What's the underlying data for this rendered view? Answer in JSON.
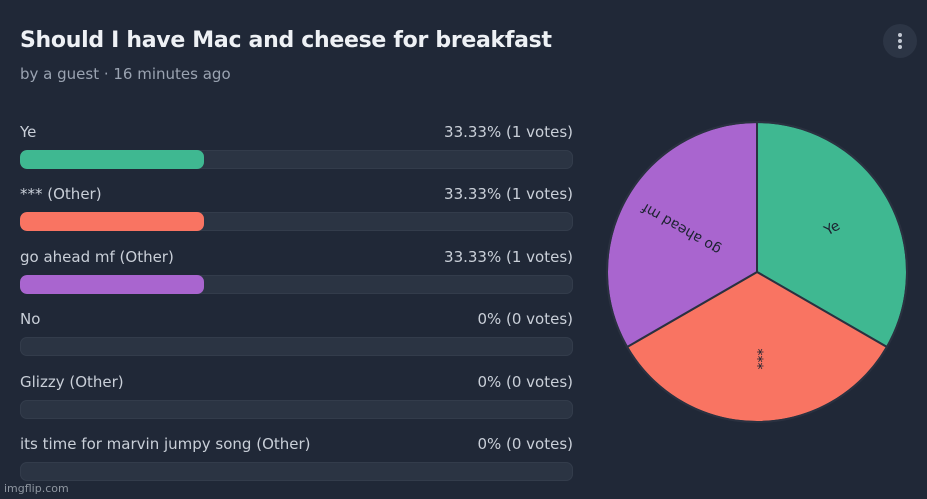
{
  "poll": {
    "title": "Should I have Mac and cheese for breakfast",
    "meta": "by a guest · 16 minutes ago"
  },
  "menu": {
    "icon": "more-vertical-icon"
  },
  "options": [
    {
      "label": "Ye",
      "result": "33.33% (1 votes)",
      "share": 0.3333,
      "color": "#3fb891"
    },
    {
      "label": "*** (Other)",
      "result": "33.33% (1 votes)",
      "share": 0.3333,
      "color": "#f97462"
    },
    {
      "label": "go ahead mf (Other)",
      "result": "33.33% (1 votes)",
      "share": 0.3333,
      "color": "#a965cf"
    },
    {
      "label": "No",
      "result": "0% (0 votes)",
      "share": 0,
      "color": "#3fb891"
    },
    {
      "label": "Glizzy (Other)",
      "result": "0% (0 votes)",
      "share": 0,
      "color": "#3fb891"
    },
    {
      "label": "its time for marvin jumpy song (Other)",
      "result": "0% (0 votes)",
      "share": 0,
      "color": "#3fb891"
    }
  ],
  "chart_data": {
    "type": "pie",
    "categories": [
      "Ye",
      "***",
      "go ahead mf"
    ],
    "values": [
      1,
      1,
      1
    ],
    "colors": [
      "#3fb891",
      "#f97462",
      "#a965cf"
    ]
  },
  "watermark": "imgflip.com"
}
